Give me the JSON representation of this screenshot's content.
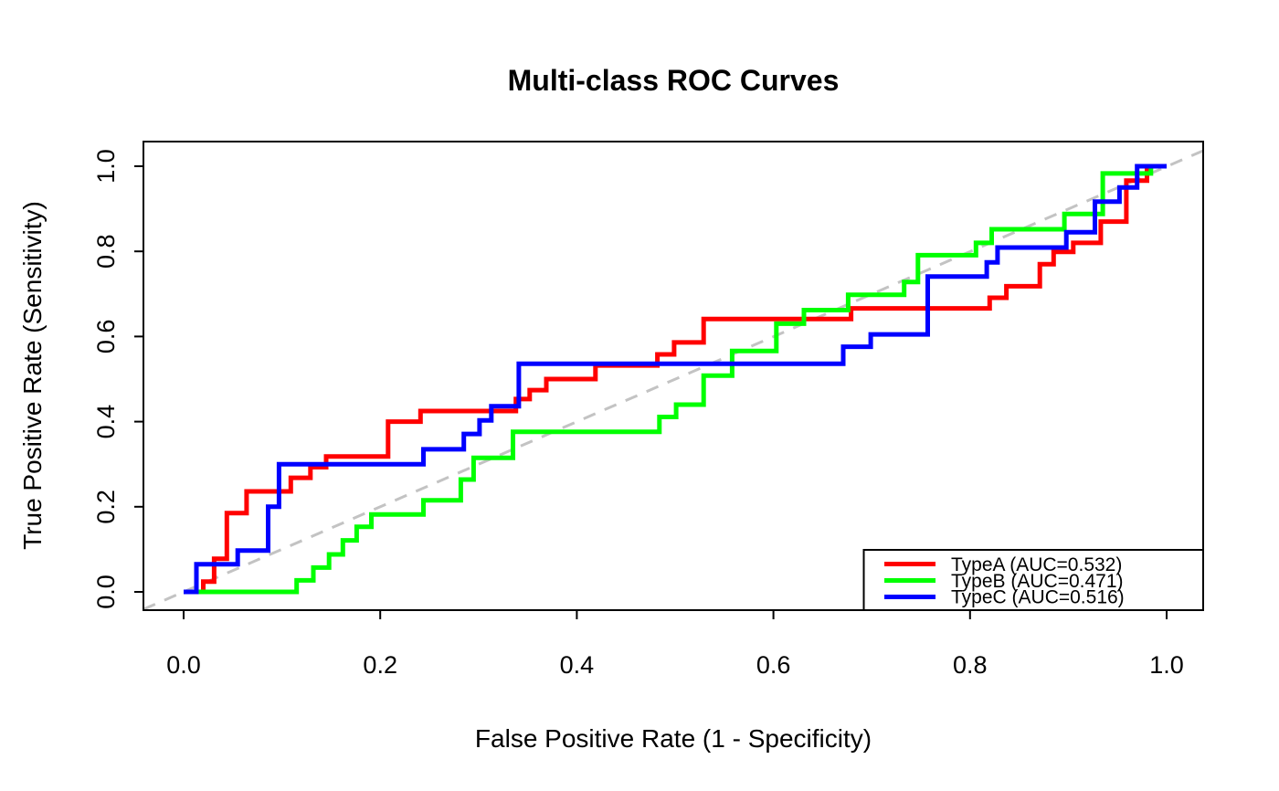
{
  "page": {
    "background": "#ffffff",
    "axis_color": "#000000"
  },
  "chart_data": {
    "type": "line",
    "subtype": "roc_step_curves",
    "title": "Multi-class ROC Curves",
    "xlabel": "False Positive Rate (1 - Specificity)",
    "ylabel": "True Positive Rate (Sensitivity)",
    "xlim": [
      0,
      1
    ],
    "ylim": [
      0,
      1
    ],
    "grid": false,
    "x_ticks": [
      {
        "value": 0.0,
        "label": "0.0"
      },
      {
        "value": 0.2,
        "label": "0.2"
      },
      {
        "value": 0.4,
        "label": "0.4"
      },
      {
        "value": 0.6,
        "label": "0.6"
      },
      {
        "value": 0.8,
        "label": "0.8"
      },
      {
        "value": 1.0,
        "label": "1.0"
      }
    ],
    "y_ticks": [
      {
        "value": 0.0,
        "label": "0.0"
      },
      {
        "value": 0.2,
        "label": "0.2"
      },
      {
        "value": 0.4,
        "label": "0.4"
      },
      {
        "value": 0.6,
        "label": "0.6"
      },
      {
        "value": 0.8,
        "label": "0.8"
      },
      {
        "value": 1.0,
        "label": "1.0"
      }
    ],
    "reference_line": {
      "type": "chance-diagonal",
      "from": [
        0,
        0
      ],
      "to": [
        1,
        1
      ],
      "style": "dashed",
      "color": "#c3c3c3"
    },
    "legend": {
      "position": "bottomright",
      "entries": [
        {
          "label": "TypeA (AUC=0.532)",
          "color": "#ff0000"
        },
        {
          "label": "TypeB (AUC=0.471)",
          "color": "#00ff00"
        },
        {
          "label": "TypeC (AUC=0.516)",
          "color": "#0000ff"
        }
      ]
    },
    "series": [
      {
        "name": "TypeA",
        "auc": 0.532,
        "color": "#ff0000",
        "steps": [
          [
            0.02,
            0.024
          ],
          [
            0.031,
            0.078
          ],
          [
            0.044,
            0.185
          ],
          [
            0.064,
            0.236
          ],
          [
            0.109,
            0.268
          ],
          [
            0.129,
            0.293
          ],
          [
            0.145,
            0.318
          ],
          [
            0.208,
            0.4
          ],
          [
            0.241,
            0.425
          ],
          [
            0.338,
            0.453
          ],
          [
            0.352,
            0.474
          ],
          [
            0.369,
            0.5
          ],
          [
            0.419,
            0.532
          ],
          [
            0.482,
            0.558
          ],
          [
            0.499,
            0.586
          ],
          [
            0.529,
            0.641
          ],
          [
            0.679,
            0.666
          ],
          [
            0.82,
            0.691
          ],
          [
            0.837,
            0.718
          ],
          [
            0.871,
            0.77
          ],
          [
            0.885,
            0.799
          ],
          [
            0.905,
            0.82
          ],
          [
            0.933,
            0.87
          ],
          [
            0.959,
            0.966
          ],
          [
            0.98,
            1.0
          ]
        ]
      },
      {
        "name": "TypeB",
        "auc": 0.471,
        "color": "#00ff00",
        "steps": [
          [
            0.115,
            0.027
          ],
          [
            0.132,
            0.057
          ],
          [
            0.148,
            0.088
          ],
          [
            0.162,
            0.121
          ],
          [
            0.176,
            0.153
          ],
          [
            0.191,
            0.182
          ],
          [
            0.244,
            0.215
          ],
          [
            0.282,
            0.264
          ],
          [
            0.295,
            0.315
          ],
          [
            0.335,
            0.376
          ],
          [
            0.484,
            0.411
          ],
          [
            0.501,
            0.44
          ],
          [
            0.529,
            0.508
          ],
          [
            0.558,
            0.566
          ],
          [
            0.603,
            0.63
          ],
          [
            0.631,
            0.662
          ],
          [
            0.676,
            0.698
          ],
          [
            0.733,
            0.728
          ],
          [
            0.747,
            0.791
          ],
          [
            0.806,
            0.82
          ],
          [
            0.822,
            0.852
          ],
          [
            0.896,
            0.888
          ],
          [
            0.935,
            0.983
          ],
          [
            0.984,
            1.0
          ]
        ]
      },
      {
        "name": "TypeC",
        "auc": 0.516,
        "color": "#0000ff",
        "steps": [
          [
            0.013,
            0.065
          ],
          [
            0.055,
            0.097
          ],
          [
            0.086,
            0.2
          ],
          [
            0.097,
            0.3
          ],
          [
            0.244,
            0.335
          ],
          [
            0.285,
            0.371
          ],
          [
            0.301,
            0.403
          ],
          [
            0.313,
            0.436
          ],
          [
            0.341,
            0.536
          ],
          [
            0.671,
            0.576
          ],
          [
            0.699,
            0.605
          ],
          [
            0.757,
            0.741
          ],
          [
            0.817,
            0.774
          ],
          [
            0.828,
            0.809
          ],
          [
            0.898,
            0.845
          ],
          [
            0.927,
            0.917
          ],
          [
            0.952,
            0.95
          ],
          [
            0.97,
            1.0
          ]
        ]
      }
    ]
  }
}
